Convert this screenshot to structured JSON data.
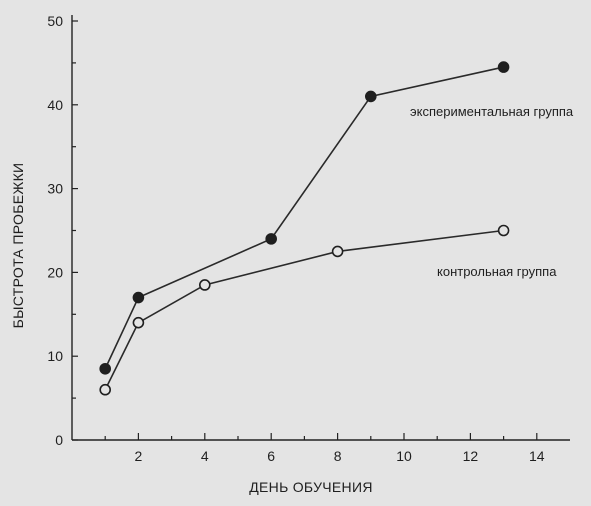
{
  "chart_data": {
    "type": "line",
    "xlabel": "ДЕНЬ ОБУЧЕНИЯ",
    "ylabel": "БЫСТРОТА ПРОБЕЖКИ",
    "xlim": [
      0,
      15
    ],
    "ylim": [
      0,
      50
    ],
    "xticks": [
      2,
      4,
      6,
      8,
      10,
      12,
      14
    ],
    "yticks": [
      0,
      10,
      20,
      30,
      40,
      50
    ],
    "grid": false,
    "series": [
      {
        "name": "экспериментальная группа",
        "marker": "filled-circle",
        "x": [
          1,
          2,
          6,
          9,
          13
        ],
        "y": [
          8.5,
          17,
          24,
          41,
          44.5
        ]
      },
      {
        "name": "контрольная группа",
        "marker": "open-circle",
        "x": [
          1,
          2,
          4,
          8,
          13
        ],
        "y": [
          6,
          14,
          18.5,
          22.5,
          25
        ]
      }
    ]
  }
}
